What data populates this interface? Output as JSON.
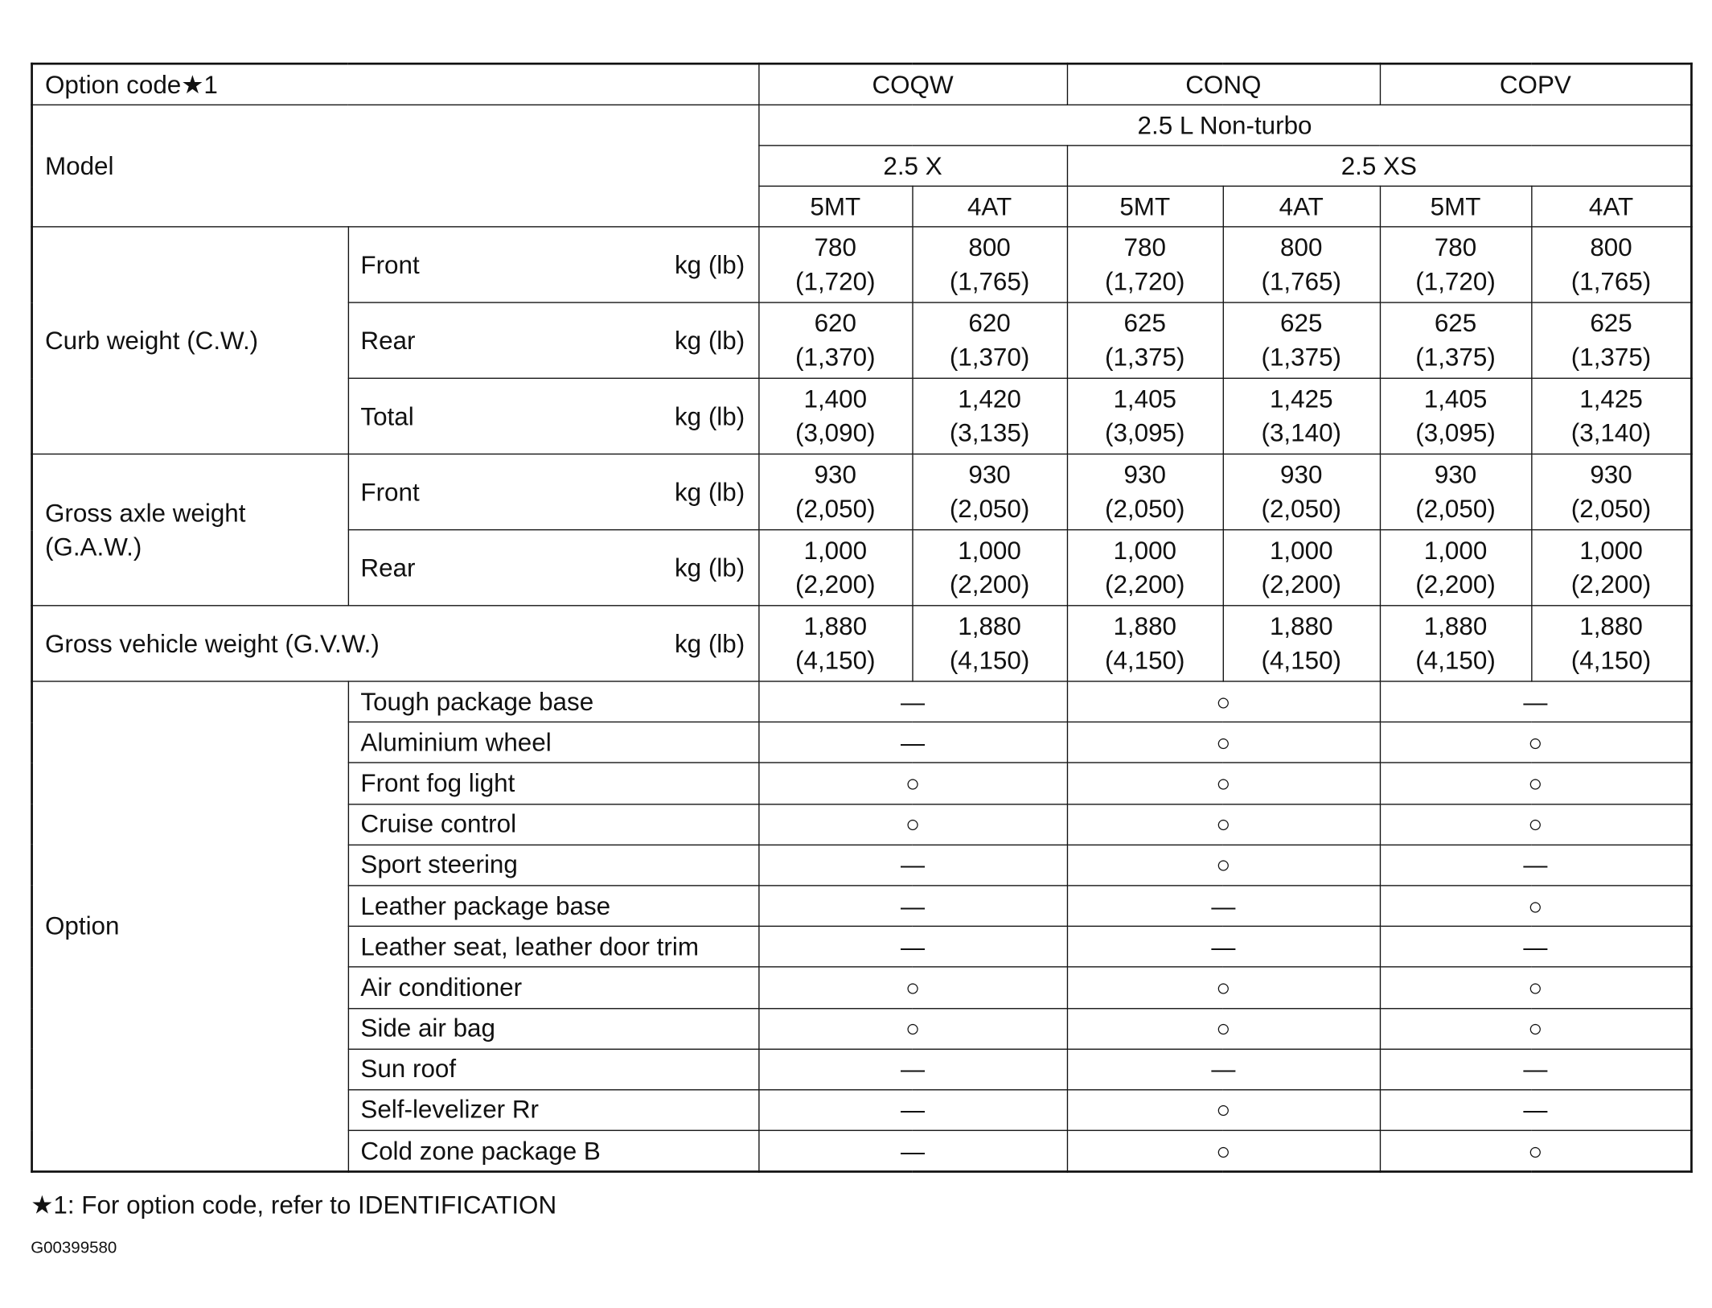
{
  "header": {
    "option_code_label": "Option code★1",
    "option_codes": [
      "COQW",
      "CONQ",
      "COPV"
    ],
    "model_label": "Model",
    "engine": "2.5 L Non-turbo",
    "grades": [
      "2.5 X",
      "2.5 XS"
    ],
    "transmissions": [
      "5MT",
      "4AT",
      "5MT",
      "4AT",
      "5MT",
      "4AT"
    ]
  },
  "unit": "kg (lb)",
  "weights": [
    {
      "group": "Curb weight (C.W.)",
      "rows": [
        {
          "label": "Front",
          "values": [
            "780\n(1,720)",
            "800\n(1,765)",
            "780\n(1,720)",
            "800\n(1,765)",
            "780\n(1,720)",
            "800\n(1,765)"
          ]
        },
        {
          "label": "Rear",
          "values": [
            "620\n(1,370)",
            "620\n(1,370)",
            "625\n(1,375)",
            "625\n(1,375)",
            "625\n(1,375)",
            "625\n(1,375)"
          ]
        },
        {
          "label": "Total",
          "values": [
            "1,400\n(3,090)",
            "1,420\n(3,135)",
            "1,405\n(3,095)",
            "1,425\n(3,140)",
            "1,405\n(3,095)",
            "1,425\n(3,140)"
          ]
        }
      ]
    },
    {
      "group": "Gross axle weight\n(G.A.W.)",
      "rows": [
        {
          "label": "Front",
          "values": [
            "930\n(2,050)",
            "930\n(2,050)",
            "930\n(2,050)",
            "930\n(2,050)",
            "930\n(2,050)",
            "930\n(2,050)"
          ]
        },
        {
          "label": "Rear",
          "values": [
            "1,000\n(2,200)",
            "1,000\n(2,200)",
            "1,000\n(2,200)",
            "1,000\n(2,200)",
            "1,000\n(2,200)",
            "1,000\n(2,200)"
          ]
        }
      ]
    }
  ],
  "gvw": {
    "label": "Gross vehicle weight (G.V.W.)",
    "values": [
      "1,880\n(4,150)",
      "1,880\n(4,150)",
      "1,880\n(4,150)",
      "1,880\n(4,150)",
      "1,880\n(4,150)",
      "1,880\n(4,150)"
    ]
  },
  "options": {
    "label": "Option",
    "items": [
      {
        "label": "Tough package base",
        "marks": [
          "—",
          "○",
          "—"
        ]
      },
      {
        "label": "Aluminium wheel",
        "marks": [
          "—",
          "○",
          "○"
        ]
      },
      {
        "label": "Front fog light",
        "marks": [
          "○",
          "○",
          "○"
        ]
      },
      {
        "label": "Cruise control",
        "marks": [
          "○",
          "○",
          "○"
        ]
      },
      {
        "label": "Sport steering",
        "marks": [
          "—",
          "○",
          "—"
        ]
      },
      {
        "label": "Leather package base",
        "marks": [
          "—",
          "—",
          "○"
        ]
      },
      {
        "label": "Leather seat, leather door trim",
        "marks": [
          "—",
          "—",
          "—"
        ]
      },
      {
        "label": "Air conditioner",
        "marks": [
          "○",
          "○",
          "○"
        ]
      },
      {
        "label": "Side air bag",
        "marks": [
          "○",
          "○",
          "○"
        ]
      },
      {
        "label": "Sun roof",
        "marks": [
          "—",
          "—",
          "—"
        ]
      },
      {
        "label": "Self-levelizer Rr",
        "marks": [
          "—",
          "○",
          "—"
        ]
      },
      {
        "label": "Cold zone package B",
        "marks": [
          "—",
          "○",
          "○"
        ]
      }
    ]
  },
  "footnote": "★1: For option code, refer to IDENTIFICATION",
  "figure_code": "G00399580"
}
